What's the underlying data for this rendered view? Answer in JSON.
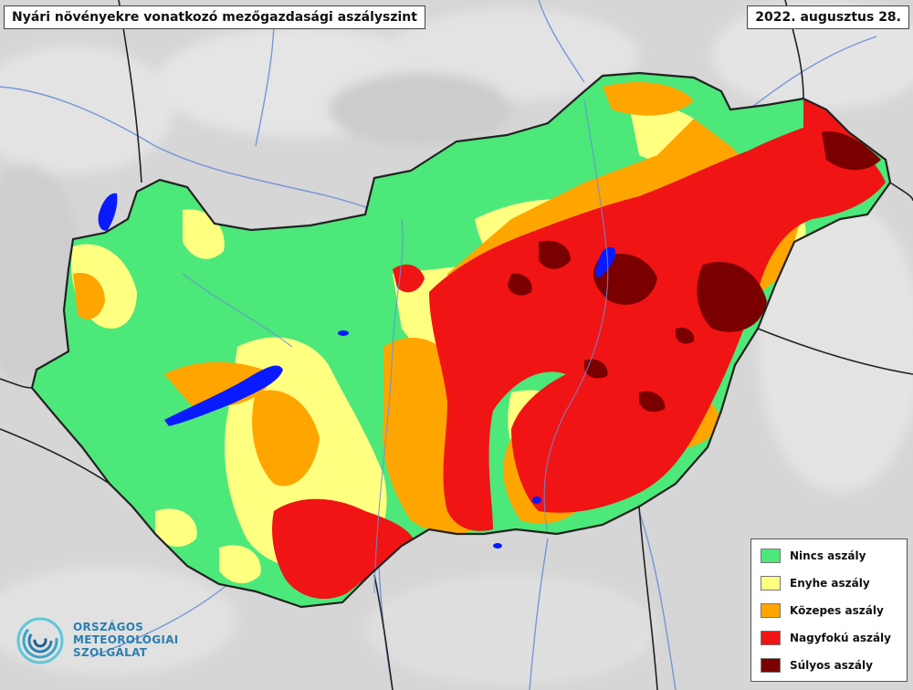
{
  "title": "Nyári növényekre vonatkozó mezőgazdasági aszályszint",
  "date": "2022. augusztus 28.",
  "legend": [
    {
      "label": "Nincs aszály",
      "color": "#4ce87a"
    },
    {
      "label": "Enyhe aszály",
      "color": "#ffff80"
    },
    {
      "label": "Közepes aszály",
      "color": "#ffa500"
    },
    {
      "label": "Nagyfokú aszály",
      "color": "#f01414"
    },
    {
      "label": "Súlyos aszály",
      "color": "#7a0000"
    }
  ],
  "logo": {
    "line1": "ORSZÁGOS",
    "line2": "METEOROLÓGIAI",
    "line3": "SZOLGÁLAT"
  },
  "colors": {
    "water": "#0a1aff",
    "border": "#222222",
    "rivers": "#6a8ed8",
    "terrain": "#d8d8d8",
    "logo": "#2a7fb0"
  }
}
